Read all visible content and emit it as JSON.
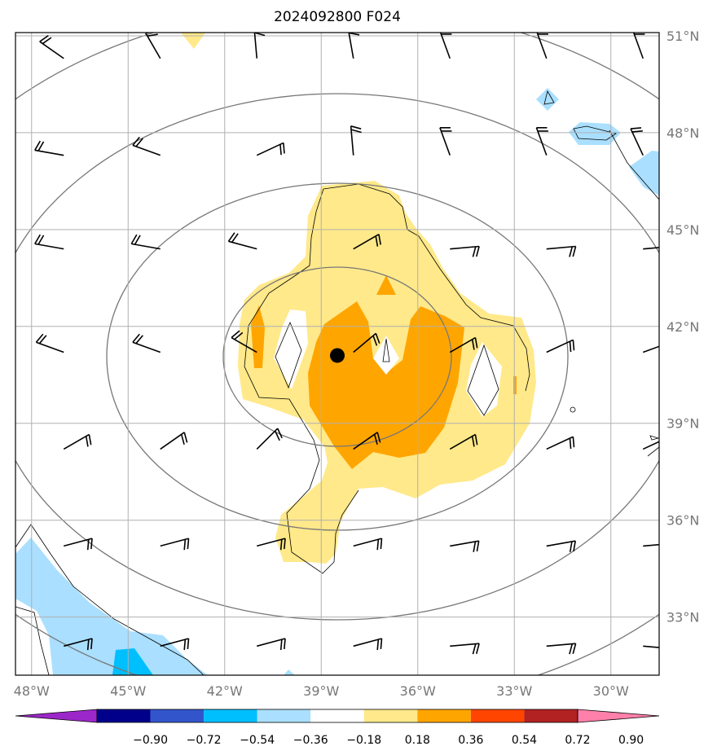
{
  "chart_data": {
    "type": "heatmap",
    "title": "2024092800 F024",
    "x_ticks": [
      "48°W",
      "45°W",
      "42°W",
      "39°W",
      "36°W",
      "33°W",
      "30°W"
    ],
    "y_ticks": [
      "51°N",
      "48°N",
      "45°N",
      "42°N",
      "39°N",
      "36°N",
      "33°N"
    ],
    "x_tick_values": [
      -48,
      -45,
      -42,
      -39,
      -36,
      -33,
      -30
    ],
    "y_tick_values": [
      51,
      48,
      45,
      42,
      39,
      36,
      33
    ],
    "xlim": [
      -48.5,
      -28.5
    ],
    "ylim": [
      31.2,
      51.1
    ],
    "grid": true,
    "colorbar": {
      "orientation": "horizontal",
      "extend": "both",
      "levels": [
        -0.9,
        -0.72,
        -0.54,
        -0.36,
        -0.18,
        0.18,
        0.36,
        0.54,
        0.72,
        0.9
      ],
      "tick_labels": [
        "−0.90",
        "−0.72",
        "−0.54",
        "−0.36",
        "−0.18",
        "0.18",
        "0.36",
        "0.54",
        "0.72",
        "0.90"
      ],
      "colors": [
        "#9c27c9",
        "#00008b",
        "#3355cc",
        "#00bfff",
        "#aadfff",
        "#ffffff",
        "#ffe98a",
        "#ffa500",
        "#ff4500",
        "#b22222",
        "#ff80aa"
      ]
    },
    "center_marker": {
      "lon": -38.5,
      "lat": 41.1
    },
    "contour_color": "#777777",
    "wind_barb_color": "#000000",
    "wind_barb_rows_lat": [
      50.3,
      47.3,
      44.4,
      41.2,
      38.2,
      35.2,
      32.1
    ],
    "wind_barb_cols_lon": [
      -47.0,
      -44.0,
      -41.0,
      -38.0,
      -35.0,
      -32.0,
      -29.0
    ]
  }
}
